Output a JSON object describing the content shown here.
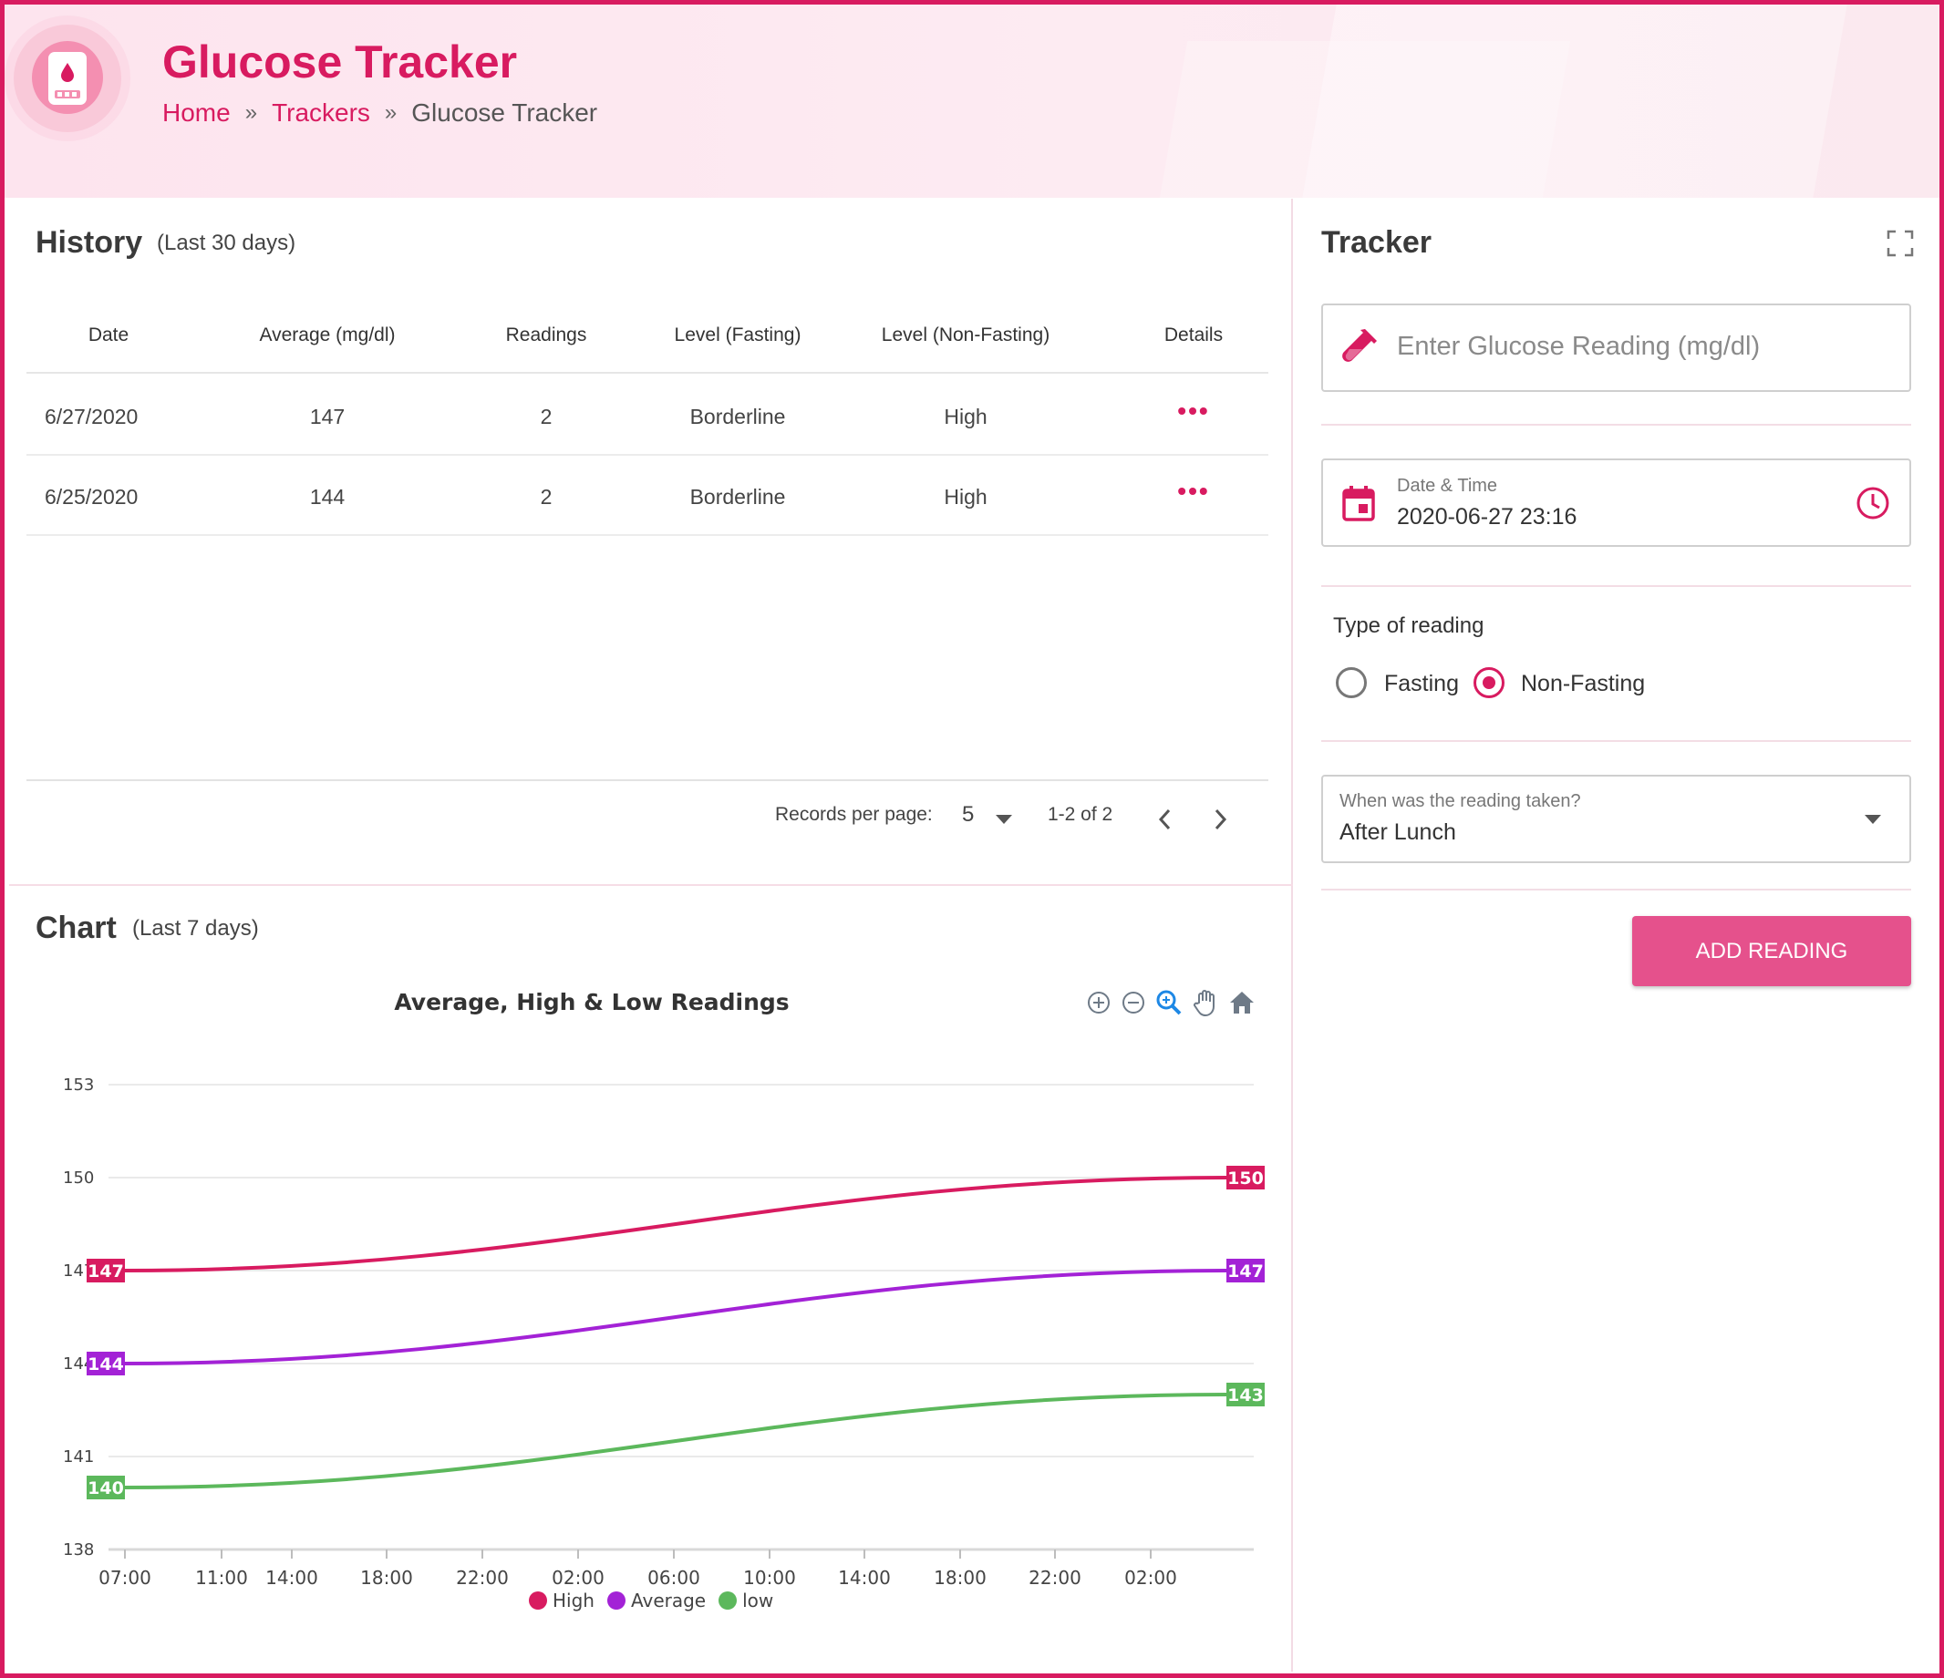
{
  "app": {
    "title": "Glucose Tracker",
    "breadcrumb": [
      "Home",
      "Trackers",
      "Glucose Tracker"
    ],
    "accent_color": "#d81b60"
  },
  "history": {
    "title": "History",
    "subtitle": "(Last 30 days)",
    "columns": [
      "Date",
      "Average (mg/dl)",
      "Readings",
      "Level (Fasting)",
      "Level (Non-Fasting)",
      "Details"
    ],
    "rows": [
      {
        "date": "6/27/2020",
        "average": "147",
        "readings": "2",
        "fasting": "Borderline",
        "non_fasting": "High",
        "details": "•••"
      },
      {
        "date": "6/25/2020",
        "average": "144",
        "readings": "2",
        "fasting": "Borderline",
        "non_fasting": "High",
        "details": "•••"
      }
    ],
    "pagination": {
      "label": "Records per page:",
      "per_page": "5",
      "range": "1-2 of 2"
    }
  },
  "chart_section": {
    "title": "Chart",
    "subtitle": "(Last 7 days)"
  },
  "chart_data": {
    "type": "line",
    "title": "Average, High & Low Readings",
    "x_ticks": [
      "07:00",
      "11:00",
      "14:00",
      "18:00",
      "22:00",
      "02:00",
      "06:00",
      "10:00",
      "14:00",
      "18:00",
      "22:00",
      "02:00"
    ],
    "y_ticks": [
      138,
      141,
      144,
      147,
      150,
      153
    ],
    "ylim": [
      138,
      153
    ],
    "grid": true,
    "legend_position": "bottom",
    "series": [
      {
        "name": "High",
        "color": "#d81b60",
        "start": 147,
        "end": 150
      },
      {
        "name": "Average",
        "color": "#a322d6",
        "start": 144,
        "end": 147
      },
      {
        "name": "low",
        "color": "#5cb85c",
        "start": 140,
        "end": 143
      }
    ]
  },
  "tracker": {
    "title": "Tracker",
    "reading_placeholder": "Enter Glucose Reading (mg/dl)",
    "datetime_label": "Date & Time",
    "datetime_value": "2020-06-27 23:16",
    "type_label": "Type of reading",
    "options": [
      "Fasting",
      "Non-Fasting"
    ],
    "selected_option": "Non-Fasting",
    "when_label": "When was the reading taken?",
    "when_value": "After Lunch",
    "add_button": "ADD READING"
  }
}
